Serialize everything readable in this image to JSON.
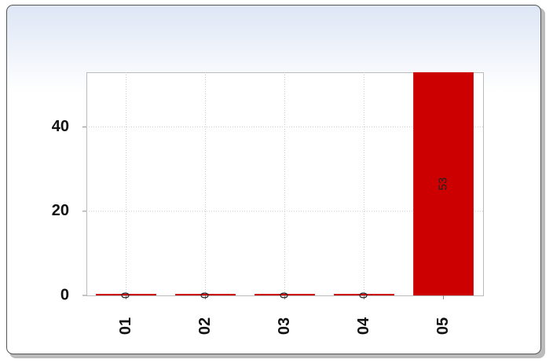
{
  "chart_data": {
    "type": "bar",
    "categories": [
      "01",
      "02",
      "03",
      "04",
      "05"
    ],
    "values": [
      0,
      0,
      0,
      0,
      53
    ],
    "color": "#cc0000",
    "ylim": [
      0,
      53
    ],
    "yticks": [
      0,
      20,
      40
    ],
    "grid": true
  }
}
